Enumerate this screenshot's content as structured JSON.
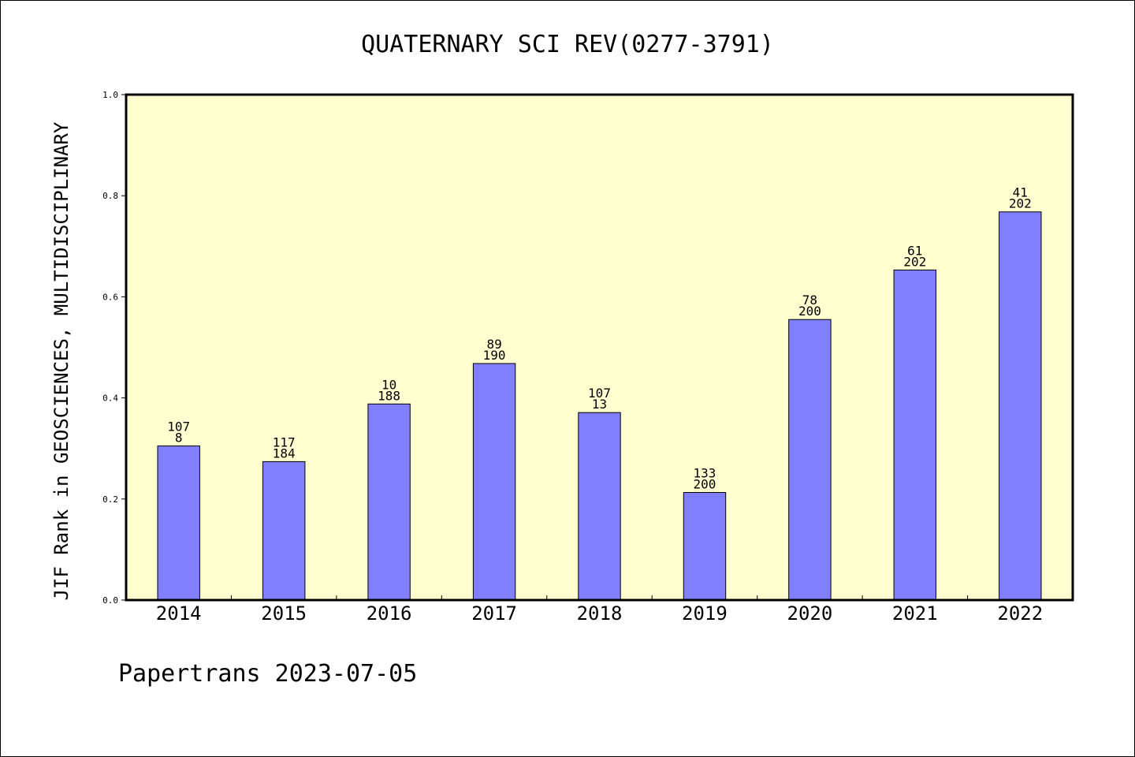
{
  "chart_data": {
    "type": "bar",
    "title": "QUATERNARY SCI REV(0277-3791)",
    "ylabel": "JIF Rank in GEOSCIENCES, MULTIDISCIPLINARY",
    "xlabel": "",
    "ylim": [
      0,
      1.0
    ],
    "yticks": [
      "0.0",
      "0.2",
      "0.4",
      "0.6",
      "0.8",
      "1.0"
    ],
    "categories": [
      "2014",
      "2015",
      "2016",
      "2017",
      "2018",
      "2019",
      "2020",
      "2021",
      "2022"
    ],
    "values": [
      0.305,
      0.274,
      0.388,
      0.468,
      0.371,
      0.213,
      0.555,
      0.653,
      0.768
    ],
    "bar_labels": [
      [
        "107",
        "8"
      ],
      [
        "117",
        "184"
      ],
      [
        "10",
        "188"
      ],
      [
        "89",
        "190"
      ],
      [
        "107",
        "13"
      ],
      [
        "133",
        "200"
      ],
      [
        "78",
        "200"
      ],
      [
        "61",
        "202"
      ],
      [
        "41",
        "202"
      ]
    ],
    "grid": false,
    "colors": {
      "plot_bg": "#ffffd0",
      "bar_fill": "#8080ff",
      "bar_stroke": "#000000"
    }
  },
  "footer": "Papertrans 2023-07-05"
}
